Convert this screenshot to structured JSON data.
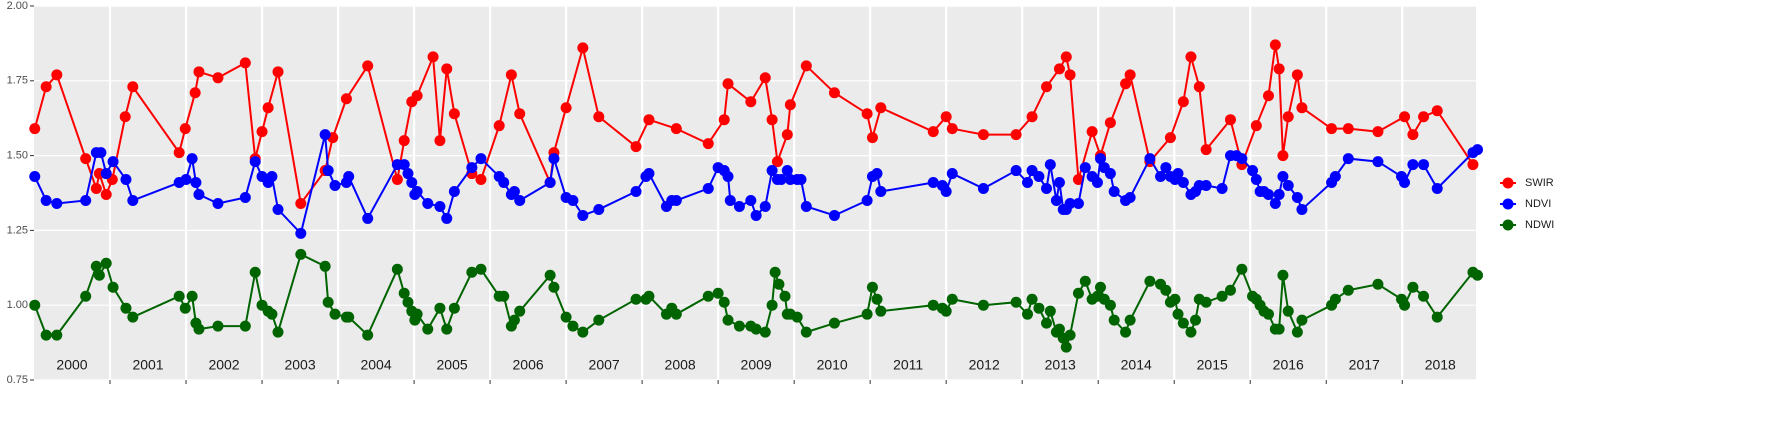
{
  "chart_data": {
    "type": "line",
    "xlim": [
      2000.0,
      2018.97
    ],
    "ylim": [
      0.75,
      2.0
    ],
    "yticks": [
      {
        "value": 0.75,
        "label": "0.75"
      },
      {
        "value": 1.0,
        "label": "1.00"
      },
      {
        "value": 1.25,
        "label": "1.25"
      },
      {
        "value": 1.5,
        "label": "1.50"
      },
      {
        "value": 1.75,
        "label": "1.75"
      },
      {
        "value": 2.0,
        "label": "2.00"
      }
    ],
    "xticks": [
      {
        "value": 2000.5,
        "label": "2000"
      },
      {
        "value": 2001.5,
        "label": "2001"
      },
      {
        "value": 2002.5,
        "label": "2002"
      },
      {
        "value": 2003.5,
        "label": "2003"
      },
      {
        "value": 2004.5,
        "label": "2004"
      },
      {
        "value": 2005.5,
        "label": "2005"
      },
      {
        "value": 2006.5,
        "label": "2006"
      },
      {
        "value": 2007.5,
        "label": "2007"
      },
      {
        "value": 2008.5,
        "label": "2008"
      },
      {
        "value": 2009.5,
        "label": "2009"
      },
      {
        "value": 2010.5,
        "label": "2010"
      },
      {
        "value": 2011.5,
        "label": "2011"
      },
      {
        "value": 2012.5,
        "label": "2012"
      },
      {
        "value": 2013.5,
        "label": "2013"
      },
      {
        "value": 2014.5,
        "label": "2014"
      },
      {
        "value": 2015.5,
        "label": "2015"
      },
      {
        "value": 2016.5,
        "label": "2016"
      },
      {
        "value": 2017.5,
        "label": "2017"
      },
      {
        "value": 2018.5,
        "label": "2018"
      }
    ],
    "xgrid": [
      2001,
      2002,
      2003,
      2004,
      2005,
      2006,
      2007,
      2008,
      2009,
      2010,
      2011,
      2012,
      2013,
      2014,
      2015,
      2016,
      2017,
      2018
    ],
    "grid": true,
    "legend": "right",
    "series": [
      {
        "name": "SWIR",
        "color": "#ff0000",
        "x": [
          2000.01,
          2000.16,
          2000.3,
          2000.68,
          2000.82,
          2000.86,
          2000.95,
          2001.03,
          2001.2,
          2001.3,
          2001.91,
          2001.99,
          2002.12,
          2002.17,
          2002.42,
          2002.78,
          2002.91,
          2003.0,
          2003.08,
          2003.21,
          2003.51,
          2003.83,
          2003.93,
          2004.11,
          2004.39,
          2004.78,
          2004.87,
          2004.97,
          2005.04,
          2005.25,
          2005.34,
          2005.43,
          2005.53,
          2005.76,
          2005.88,
          2006.12,
          2006.28,
          2006.39,
          2006.79,
          2006.84,
          2007.0,
          2007.22,
          2007.43,
          2007.92,
          2008.09,
          2008.45,
          2008.87,
          2009.08,
          2009.13,
          2009.43,
          2009.62,
          2009.71,
          2009.78,
          2009.91,
          2009.95,
          2010.16,
          2010.53,
          2010.96,
          2011.03,
          2011.14,
          2011.83,
          2012.0,
          2012.08,
          2012.49,
          2012.92,
          2013.13,
          2013.32,
          2013.49,
          2013.58,
          2013.63,
          2013.74,
          2013.92,
          2014.03,
          2014.16,
          2014.36,
          2014.42,
          2014.68,
          2014.95,
          2015.12,
          2015.22,
          2015.33,
          2015.42,
          2015.74,
          2015.89,
          2016.08,
          2016.24,
          2016.33,
          2016.38,
          2016.43,
          2016.5,
          2016.62,
          2016.68,
          2017.07,
          2017.29,
          2017.68,
          2018.03,
          2018.14,
          2018.28,
          2018.46,
          2018.93
        ],
        "values": [
          1.59,
          1.73,
          1.77,
          1.49,
          1.39,
          1.44,
          1.37,
          1.42,
          1.63,
          1.73,
          1.51,
          1.59,
          1.71,
          1.78,
          1.76,
          1.81,
          1.49,
          1.58,
          1.66,
          1.78,
          1.34,
          1.45,
          1.56,
          1.69,
          1.8,
          1.42,
          1.55,
          1.68,
          1.7,
          1.83,
          1.55,
          1.79,
          1.64,
          1.44,
          1.42,
          1.6,
          1.77,
          1.64,
          1.41,
          1.51,
          1.66,
          1.86,
          1.63,
          1.53,
          1.62,
          1.59,
          1.54,
          1.62,
          1.74,
          1.68,
          1.76,
          1.62,
          1.48,
          1.57,
          1.67,
          1.8,
          1.71,
          1.64,
          1.56,
          1.66,
          1.58,
          1.63,
          1.59,
          1.57,
          1.57,
          1.63,
          1.73,
          1.79,
          1.83,
          1.77,
          1.42,
          1.58,
          1.5,
          1.61,
          1.74,
          1.77,
          1.48,
          1.56,
          1.68,
          1.83,
          1.73,
          1.52,
          1.62,
          1.47,
          1.6,
          1.7,
          1.87,
          1.79,
          1.5,
          1.63,
          1.77,
          1.66,
          1.59,
          1.59,
          1.58,
          1.63,
          1.57,
          1.63,
          1.65,
          1.47
        ]
      },
      {
        "name": "NDVI",
        "color": "#0000ff",
        "x": [
          2000.01,
          2000.16,
          2000.3,
          2000.68,
          2000.82,
          2000.88,
          2000.95,
          2001.04,
          2001.21,
          2001.3,
          2001.91,
          2002.0,
          2002.08,
          2002.13,
          2002.17,
          2002.42,
          2002.78,
          2002.91,
          2003.0,
          2003.08,
          2003.13,
          2003.21,
          2003.51,
          2003.83,
          2003.87,
          2003.96,
          2004.11,
          2004.14,
          2004.39,
          2004.78,
          2004.87,
          2004.92,
          2004.97,
          2005.01,
          2005.04,
          2005.18,
          2005.34,
          2005.43,
          2005.53,
          2005.76,
          2005.88,
          2006.12,
          2006.18,
          2006.28,
          2006.32,
          2006.39,
          2006.79,
          2006.84,
          2007.0,
          2007.09,
          2007.22,
          2007.43,
          2007.92,
          2008.05,
          2008.09,
          2008.32,
          2008.39,
          2008.45,
          2008.87,
          2009.0,
          2009.08,
          2009.13,
          2009.16,
          2009.28,
          2009.43,
          2009.5,
          2009.62,
          2009.71,
          2009.78,
          2009.83,
          2009.91,
          2009.95,
          2010.04,
          2010.09,
          2010.16,
          2010.53,
          2010.96,
          2011.03,
          2011.09,
          2011.14,
          2011.83,
          2011.95,
          2012.0,
          2012.08,
          2012.49,
          2012.92,
          2013.07,
          2013.13,
          2013.22,
          2013.32,
          2013.37,
          2013.45,
          2013.49,
          2013.54,
          2013.58,
          2013.63,
          2013.74,
          2013.83,
          2013.92,
          2013.99,
          2014.03,
          2014.08,
          2014.16,
          2014.21,
          2014.36,
          2014.42,
          2014.68,
          2014.82,
          2014.89,
          2014.95,
          2015.01,
          2015.05,
          2015.12,
          2015.22,
          2015.28,
          2015.33,
          2015.42,
          2015.63,
          2015.74,
          2015.82,
          2015.89,
          2016.03,
          2016.08,
          2016.13,
          2016.18,
          2016.24,
          2016.33,
          2016.38,
          2016.43,
          2016.5,
          2016.62,
          2016.68,
          2017.07,
          2017.12,
          2017.29,
          2017.68,
          2017.99,
          2018.03,
          2018.14,
          2018.28,
          2018.46,
          2018.93,
          2018.99
        ],
        "values": [
          1.43,
          1.35,
          1.34,
          1.35,
          1.51,
          1.51,
          1.44,
          1.48,
          1.42,
          1.35,
          1.41,
          1.42,
          1.49,
          1.41,
          1.37,
          1.34,
          1.36,
          1.48,
          1.43,
          1.41,
          1.43,
          1.32,
          1.24,
          1.57,
          1.45,
          1.4,
          1.41,
          1.43,
          1.29,
          1.47,
          1.47,
          1.44,
          1.41,
          1.37,
          1.38,
          1.34,
          1.33,
          1.29,
          1.38,
          1.46,
          1.49,
          1.43,
          1.41,
          1.37,
          1.38,
          1.35,
          1.41,
          1.49,
          1.36,
          1.35,
          1.3,
          1.32,
          1.38,
          1.43,
          1.44,
          1.33,
          1.35,
          1.35,
          1.39,
          1.46,
          1.45,
          1.43,
          1.35,
          1.33,
          1.35,
          1.3,
          1.33,
          1.45,
          1.42,
          1.42,
          1.45,
          1.42,
          1.42,
          1.42,
          1.33,
          1.3,
          1.35,
          1.43,
          1.44,
          1.38,
          1.41,
          1.4,
          1.38,
          1.44,
          1.39,
          1.45,
          1.41,
          1.45,
          1.43,
          1.39,
          1.47,
          1.35,
          1.41,
          1.32,
          1.32,
          1.34,
          1.34,
          1.46,
          1.43,
          1.41,
          1.49,
          1.46,
          1.44,
          1.38,
          1.35,
          1.36,
          1.49,
          1.43,
          1.46,
          1.43,
          1.42,
          1.44,
          1.41,
          1.37,
          1.38,
          1.4,
          1.4,
          1.39,
          1.5,
          1.5,
          1.49,
          1.45,
          1.42,
          1.38,
          1.38,
          1.37,
          1.34,
          1.37,
          1.43,
          1.4,
          1.36,
          1.32,
          1.41,
          1.43,
          1.49,
          1.48,
          1.43,
          1.41,
          1.47,
          1.47,
          1.39,
          1.51,
          1.52
        ]
      },
      {
        "name": "NDWI",
        "color": "#006400",
        "x": [
          2000.01,
          2000.16,
          2000.3,
          2000.68,
          2000.82,
          2000.86,
          2000.95,
          2001.04,
          2001.21,
          2001.3,
          2001.91,
          2001.99,
          2002.08,
          2002.13,
          2002.17,
          2002.42,
          2002.78,
          2002.91,
          2003.0,
          2003.08,
          2003.13,
          2003.21,
          2003.51,
          2003.83,
          2003.87,
          2003.96,
          2004.11,
          2004.14,
          2004.39,
          2004.78,
          2004.87,
          2004.92,
          2004.97,
          2005.01,
          2005.04,
          2005.18,
          2005.34,
          2005.43,
          2005.53,
          2005.76,
          2005.88,
          2006.12,
          2006.18,
          2006.28,
          2006.32,
          2006.39,
          2006.79,
          2006.84,
          2007.0,
          2007.09,
          2007.22,
          2007.43,
          2007.92,
          2008.05,
          2008.09,
          2008.32,
          2008.39,
          2008.45,
          2008.87,
          2009.0,
          2009.08,
          2009.13,
          2009.28,
          2009.43,
          2009.5,
          2009.62,
          2009.71,
          2009.75,
          2009.8,
          2009.88,
          2009.91,
          2009.95,
          2010.04,
          2010.16,
          2010.53,
          2010.96,
          2011.03,
          2011.09,
          2011.14,
          2011.83,
          2011.95,
          2012.0,
          2012.08,
          2012.49,
          2012.92,
          2013.07,
          2013.13,
          2013.22,
          2013.32,
          2013.37,
          2013.45,
          2013.49,
          2013.54,
          2013.58,
          2013.63,
          2013.74,
          2013.83,
          2013.92,
          2013.99,
          2014.03,
          2014.08,
          2014.16,
          2014.21,
          2014.36,
          2014.42,
          2014.68,
          2014.82,
          2014.89,
          2014.95,
          2015.01,
          2015.05,
          2015.12,
          2015.22,
          2015.28,
          2015.33,
          2015.42,
          2015.63,
          2015.74,
          2015.89,
          2016.03,
          2016.08,
          2016.13,
          2016.18,
          2016.24,
          2016.33,
          2016.38,
          2016.43,
          2016.5,
          2016.62,
          2016.68,
          2017.07,
          2017.12,
          2017.29,
          2017.68,
          2017.99,
          2018.03,
          2018.14,
          2018.28,
          2018.46,
          2018.93,
          2018.99
        ],
        "values": [
          1.0,
          0.9,
          0.9,
          1.03,
          1.13,
          1.1,
          1.14,
          1.06,
          0.99,
          0.96,
          1.03,
          0.99,
          1.03,
          0.94,
          0.92,
          0.93,
          0.93,
          1.11,
          1.0,
          0.98,
          0.97,
          0.91,
          1.17,
          1.13,
          1.01,
          0.97,
          0.96,
          0.96,
          0.9,
          1.12,
          1.04,
          1.01,
          0.98,
          0.95,
          0.97,
          0.92,
          0.99,
          0.92,
          0.99,
          1.11,
          1.12,
          1.03,
          1.03,
          0.93,
          0.95,
          0.98,
          1.1,
          1.06,
          0.96,
          0.93,
          0.91,
          0.95,
          1.02,
          1.02,
          1.03,
          0.97,
          0.99,
          0.97,
          1.03,
          1.04,
          1.01,
          0.95,
          0.93,
          0.93,
          0.92,
          0.91,
          1.0,
          1.11,
          1.07,
          1.03,
          0.97,
          0.97,
          0.96,
          0.91,
          0.94,
          0.97,
          1.06,
          1.02,
          0.98,
          1.0,
          0.99,
          0.98,
          1.02,
          1.0,
          1.01,
          0.97,
          1.02,
          0.99,
          0.94,
          0.98,
          0.91,
          0.92,
          0.89,
          0.86,
          0.9,
          1.04,
          1.08,
          1.02,
          1.03,
          1.06,
          1.02,
          1.0,
          0.95,
          0.91,
          0.95,
          1.08,
          1.07,
          1.05,
          1.01,
          1.02,
          0.97,
          0.94,
          0.91,
          0.95,
          1.02,
          1.01,
          1.03,
          1.05,
          1.12,
          1.03,
          1.02,
          1.0,
          0.98,
          0.97,
          0.92,
          0.92,
          1.1,
          0.98,
          0.91,
          0.95,
          1.0,
          1.02,
          1.05,
          1.07,
          1.02,
          1.0,
          1.06,
          1.03,
          0.96,
          1.11,
          1.1
        ]
      }
    ]
  }
}
